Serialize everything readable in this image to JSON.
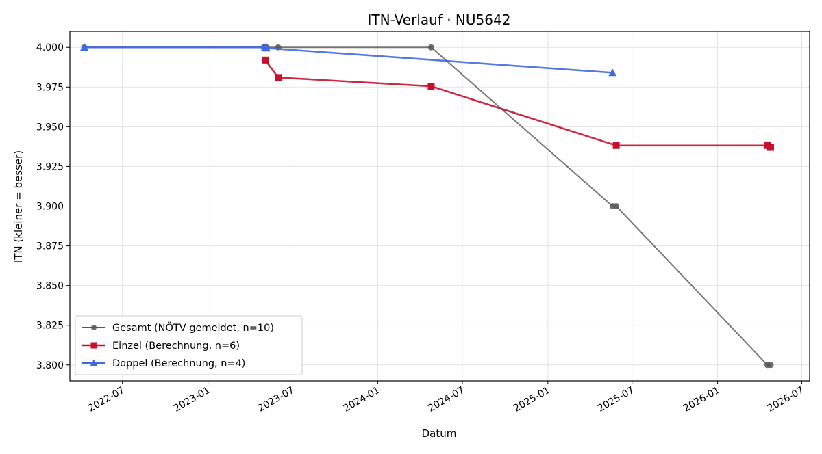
{
  "chart_data": {
    "type": "line",
    "title": "ITN-Verlauf · NU5642",
    "xlabel": "Datum",
    "ylabel": "ITN  (kleiner = besser)",
    "xlim": [
      "2022-03-10",
      "2026-07-18"
    ],
    "ylim": [
      3.79,
      4.01
    ],
    "x_ticks": [
      "2022-07-01",
      "2023-01-01",
      "2023-07-01",
      "2024-01-01",
      "2024-07-01",
      "2025-01-01",
      "2025-07-01",
      "2026-01-01",
      "2026-07-01"
    ],
    "x_tick_labels": [
      "2022-07",
      "2023-01",
      "2023-07",
      "2024-01",
      "2024-07",
      "2025-01",
      "2025-07",
      "2026-01",
      "2026-07"
    ],
    "y_ticks": [
      3.8,
      3.825,
      3.85,
      3.875,
      3.9,
      3.925,
      3.95,
      3.975,
      4.0
    ],
    "y_tick_labels": [
      "3.800",
      "3.825",
      "3.850",
      "3.875",
      "3.900",
      "3.925",
      "3.950",
      "3.975",
      "4.000"
    ],
    "grid": true,
    "legend_position": "lower-left",
    "series": [
      {
        "name": "Gesamt (NÖTV gemeldet, n=10)",
        "color": "#555555",
        "marker": "circle",
        "x": [
          "2022-04-10",
          "2023-05-01",
          "2023-05-04",
          "2023-05-07",
          "2023-06-01",
          "2024-04-25",
          "2025-05-20",
          "2025-05-28",
          "2026-04-18",
          "2026-04-25"
        ],
        "y": [
          4.0,
          4.0,
          4.0,
          4.0,
          4.0,
          4.0,
          3.9,
          3.9,
          3.8,
          3.8
        ]
      },
      {
        "name": "Einzel (Berechnung, n=6)",
        "color": "#c8102e",
        "marker": "square",
        "x": [
          "2023-05-04",
          "2023-06-01",
          "2024-04-25",
          "2025-05-28",
          "2026-04-18",
          "2026-04-25"
        ],
        "y": [
          3.992,
          3.981,
          3.9755,
          3.9382,
          3.9382,
          3.937
        ]
      },
      {
        "name": "Doppel (Berechnung, n=4)",
        "color": "#4169e1",
        "marker": "triangle",
        "x": [
          "2022-04-10",
          "2023-05-04",
          "2023-05-07",
          "2025-05-20"
        ],
        "y": [
          4.0,
          4.0,
          3.9995,
          3.984
        ]
      }
    ]
  }
}
